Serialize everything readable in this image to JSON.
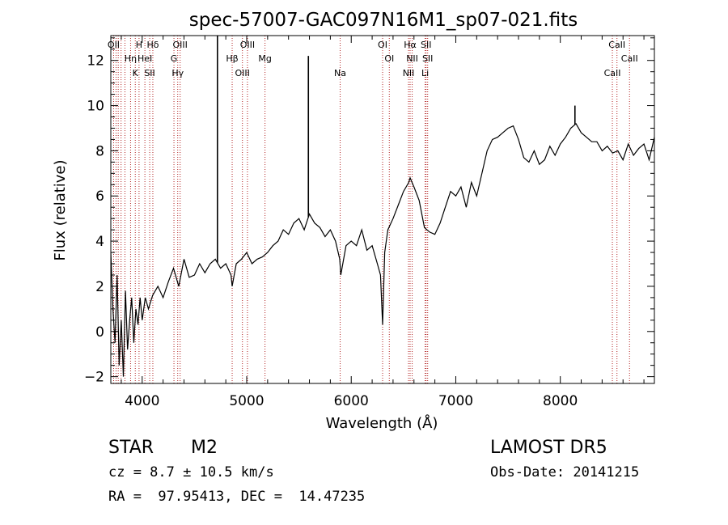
{
  "chart_data": {
    "type": "line",
    "title": "spec-57007-GAC097N16M1_sp07-021.fits",
    "xlabel": "Wavelength (Å)",
    "ylabel": "Flux (relative)",
    "xlim": [
      3700,
      8900
    ],
    "ylim": [
      -2.3,
      13.1
    ],
    "xticks": [
      4000,
      5000,
      6000,
      7000,
      8000
    ],
    "yticks": [
      -2,
      0,
      2,
      4,
      6,
      8,
      10,
      12
    ],
    "grid": false,
    "series": [
      {
        "x": [
          3700,
          3720,
          3740,
          3760,
          3780,
          3800,
          3820,
          3840,
          3860,
          3880,
          3900,
          3920,
          3940,
          3960,
          3980,
          4000,
          4030,
          4060,
          4100,
          4150,
          4200,
          4250,
          4300,
          4350,
          4400,
          4450,
          4500,
          4550,
          4600,
          4650,
          4700,
          4750,
          4800,
          4850,
          4861,
          4900,
          4950,
          5000,
          5050,
          5100,
          5150,
          5200,
          5250,
          5300,
          5350,
          5400,
          5450,
          5500,
          5550,
          5600,
          5650,
          5700,
          5750,
          5800,
          5850,
          5890,
          5900,
          5950,
          6000,
          6050,
          6100,
          6150,
          6200,
          6250,
          6280,
          6300,
          6320,
          6350,
          6400,
          6450,
          6500,
          6550,
          6563,
          6600,
          6650,
          6700,
          6750,
          6800,
          6850,
          6900,
          6950,
          7000,
          7050,
          7100,
          7150,
          7200,
          7250,
          7300,
          7350,
          7400,
          7450,
          7500,
          7550,
          7600,
          7650,
          7700,
          7750,
          7800,
          7850,
          7900,
          7950,
          8000,
          8050,
          8100,
          8150,
          8200,
          8250,
          8300,
          8350,
          8400,
          8450,
          8500,
          8550,
          8600,
          8650,
          8700,
          8750,
          8800,
          8850,
          8900
        ],
        "y": [
          3.5,
          1.0,
          -0.5,
          2.5,
          -1.5,
          0.5,
          -2.0,
          1.8,
          -0.8,
          0.5,
          1.5,
          -0.5,
          1.0,
          0.3,
          1.5,
          0.5,
          1.5,
          1.0,
          1.6,
          2.0,
          1.5,
          2.2,
          2.8,
          2.0,
          3.2,
          2.4,
          2.5,
          3.0,
          2.6,
          3.0,
          3.2,
          2.8,
          3.0,
          2.5,
          2.0,
          3.0,
          3.2,
          3.5,
          3.0,
          3.2,
          3.3,
          3.5,
          3.8,
          4.0,
          4.5,
          4.3,
          4.8,
          5.0,
          4.5,
          5.2,
          4.8,
          4.6,
          4.2,
          4.5,
          4.0,
          3.2,
          2.5,
          3.8,
          4.0,
          3.8,
          4.5,
          3.6,
          3.8,
          3.0,
          2.5,
          0.3,
          3.5,
          4.5,
          5.0,
          5.6,
          6.2,
          6.6,
          6.8,
          6.4,
          5.8,
          4.6,
          4.4,
          4.3,
          4.8,
          5.5,
          6.2,
          6.0,
          6.4,
          5.5,
          6.6,
          6.0,
          7.0,
          8.0,
          8.5,
          8.6,
          8.8,
          9.0,
          9.1,
          8.5,
          7.7,
          7.5,
          8.0,
          7.4,
          7.6,
          8.2,
          7.8,
          8.3,
          8.6,
          9.0,
          9.2,
          8.8,
          8.6,
          8.4,
          8.4,
          8.0,
          8.2,
          7.9,
          8.0,
          7.6,
          8.3,
          7.8,
          8.1,
          8.3,
          7.6,
          8.6
        ]
      }
    ],
    "spikes": [
      {
        "x": 4720,
        "y": 13.1
      },
      {
        "x": 5590,
        "y": 12.2
      },
      {
        "x": 8140,
        "y": 10.0
      }
    ],
    "lines": [
      {
        "x": 3727,
        "labels": [
          "OII"
        ]
      },
      {
        "x": 3750,
        "labels": []
      },
      {
        "x": 3771,
        "labels": []
      },
      {
        "x": 3798,
        "labels": []
      },
      {
        "x": 3835,
        "labels": []
      },
      {
        "x": 3889,
        "labels": [
          "Hη"
        ]
      },
      {
        "x": 3934,
        "labels": [
          "K"
        ]
      },
      {
        "x": 3970,
        "labels": [
          "H"
        ]
      },
      {
        "x": 4026,
        "labels": [
          "HeI"
        ]
      },
      {
        "x": 4072,
        "labels": [
          "SII"
        ]
      },
      {
        "x": 4102,
        "labels": [
          "Hδ"
        ]
      },
      {
        "x": 4304,
        "labels": [
          "G"
        ]
      },
      {
        "x": 4340,
        "labels": [
          "Hγ"
        ]
      },
      {
        "x": 4363,
        "labels": [
          "OIII"
        ]
      },
      {
        "x": 4861,
        "labels": [
          "Hβ"
        ]
      },
      {
        "x": 4959,
        "labels": [
          "OIII"
        ]
      },
      {
        "x": 5007,
        "labels": [
          "OIII"
        ]
      },
      {
        "x": 5175,
        "labels": [
          "Mg"
        ]
      },
      {
        "x": 5894,
        "labels": [
          "Na"
        ]
      },
      {
        "x": 6300,
        "labels": [
          "OI"
        ]
      },
      {
        "x": 6364,
        "labels": [
          "OI"
        ]
      },
      {
        "x": 6548,
        "labels": [
          "NII"
        ]
      },
      {
        "x": 6563,
        "labels": [
          "Hα"
        ]
      },
      {
        "x": 6583,
        "labels": [
          "NII"
        ]
      },
      {
        "x": 6707,
        "labels": [
          "Li"
        ]
      },
      {
        "x": 6716,
        "labels": [
          "SII"
        ]
      },
      {
        "x": 6731,
        "labels": [
          "SII"
        ]
      },
      {
        "x": 8498,
        "labels": [
          "CaII"
        ]
      },
      {
        "x": 8542,
        "labels": [
          "CaII"
        ]
      },
      {
        "x": 8662,
        "labels": [
          "CaII"
        ]
      }
    ],
    "line_color": "#b22222"
  },
  "info": {
    "object_class": "STAR",
    "subclass": "M2",
    "survey": "LAMOST DR5",
    "cz": "cz = 8.7 ± 10.5 km/s",
    "obs_date": "Obs-Date: 20141215",
    "coords": "RA =  97.95413, DEC =  14.47235"
  }
}
